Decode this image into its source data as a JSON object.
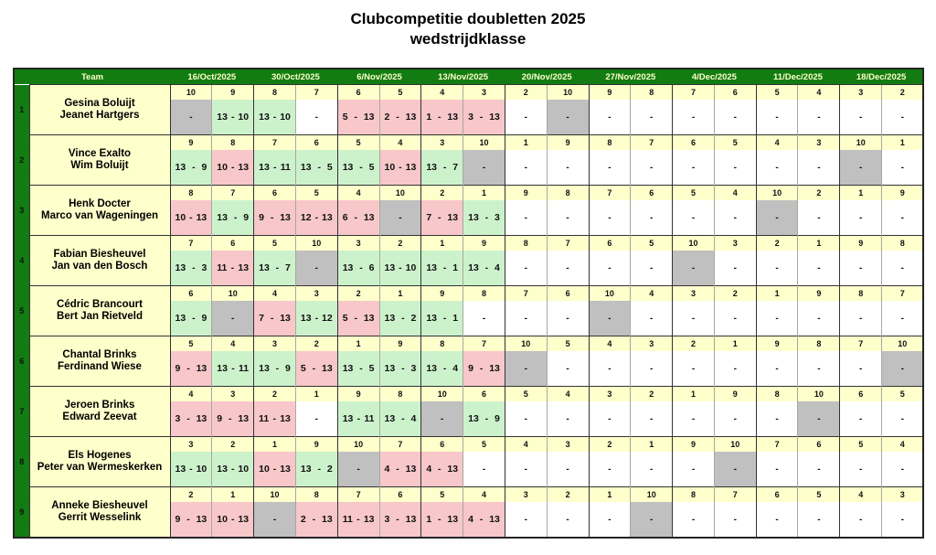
{
  "title": {
    "line1": "Clubcompetitie doubletten 2025",
    "line2": "wedstrijdklasse"
  },
  "colors": {
    "header_green": "#127C12",
    "header_text": "#FFFFCC",
    "cell_yellow": "#FFFFCC",
    "win_green": "#CCF2CC",
    "loss_red": "#F7C7C9",
    "bye_gray": "#C0C0C0",
    "open_white": "#FFFFFF",
    "border_dark": "#333333",
    "border_light": "#A8A89C"
  },
  "table": {
    "team_header": "Team",
    "dates": [
      "16/Oct/2025",
      "30/Oct/2025",
      "6/Nov/2025",
      "13/Nov/2025",
      "20/Nov/2025",
      "27/Nov/2025",
      "4/Dec/2025",
      "11/Dec/2025",
      "18/Dec/2025"
    ],
    "teams": [
      {
        "number": "1",
        "players": [
          "Gesina Boluijt",
          "Jeanet Hartgers"
        ],
        "games": [
          {
            "opp": "10",
            "score": "-",
            "state": "bye"
          },
          {
            "opp": "9",
            "score": "13 - 10",
            "state": "win"
          },
          {
            "opp": "8",
            "score": "13 - 10",
            "state": "win"
          },
          {
            "opp": "7",
            "score": "-",
            "state": "open"
          },
          {
            "opp": "6",
            "score": "5 - 13",
            "state": "loss"
          },
          {
            "opp": "5",
            "score": "2 - 13",
            "state": "loss"
          },
          {
            "opp": "4",
            "score": "1 - 13",
            "state": "loss"
          },
          {
            "opp": "3",
            "score": "3 - 13",
            "state": "loss"
          },
          {
            "opp": "2",
            "score": "-",
            "state": "open"
          },
          {
            "opp": "10",
            "score": "-",
            "state": "bye"
          },
          {
            "opp": "9",
            "score": "-",
            "state": "open"
          },
          {
            "opp": "8",
            "score": "-",
            "state": "open"
          },
          {
            "opp": "7",
            "score": "-",
            "state": "open"
          },
          {
            "opp": "6",
            "score": "-",
            "state": "open"
          },
          {
            "opp": "5",
            "score": "-",
            "state": "open"
          },
          {
            "opp": "4",
            "score": "-",
            "state": "open"
          },
          {
            "opp": "3",
            "score": "-",
            "state": "open"
          },
          {
            "opp": "2",
            "score": "-",
            "state": "open"
          }
        ]
      },
      {
        "number": "2",
        "players": [
          "Vince Exalto",
          "Wim Boluijt"
        ],
        "games": [
          {
            "opp": "9",
            "score": "13 - 9",
            "state": "win"
          },
          {
            "opp": "8",
            "score": "10 - 13",
            "state": "loss"
          },
          {
            "opp": "7",
            "score": "13 - 11",
            "state": "win"
          },
          {
            "opp": "6",
            "score": "13 - 5",
            "state": "win"
          },
          {
            "opp": "5",
            "score": "13 - 5",
            "state": "win"
          },
          {
            "opp": "4",
            "score": "10 - 13",
            "state": "loss"
          },
          {
            "opp": "3",
            "score": "13 - 7",
            "state": "win"
          },
          {
            "opp": "10",
            "score": "-",
            "state": "bye"
          },
          {
            "opp": "1",
            "score": "-",
            "state": "open"
          },
          {
            "opp": "9",
            "score": "-",
            "state": "open"
          },
          {
            "opp": "8",
            "score": "-",
            "state": "open"
          },
          {
            "opp": "7",
            "score": "-",
            "state": "open"
          },
          {
            "opp": "6",
            "score": "-",
            "state": "open"
          },
          {
            "opp": "5",
            "score": "-",
            "state": "open"
          },
          {
            "opp": "4",
            "score": "-",
            "state": "open"
          },
          {
            "opp": "3",
            "score": "-",
            "state": "open"
          },
          {
            "opp": "10",
            "score": "-",
            "state": "bye"
          },
          {
            "opp": "1",
            "score": "-",
            "state": "open"
          }
        ]
      },
      {
        "number": "3",
        "players": [
          "Henk Docter",
          "Marco van Wageningen"
        ],
        "games": [
          {
            "opp": "8",
            "score": "10 - 13",
            "state": "loss"
          },
          {
            "opp": "7",
            "score": "13 - 9",
            "state": "win"
          },
          {
            "opp": "6",
            "score": "9 - 13",
            "state": "loss"
          },
          {
            "opp": "5",
            "score": "12 - 13",
            "state": "loss"
          },
          {
            "opp": "4",
            "score": "6 - 13",
            "state": "loss"
          },
          {
            "opp": "10",
            "score": "-",
            "state": "bye"
          },
          {
            "opp": "2",
            "score": "7 - 13",
            "state": "loss"
          },
          {
            "opp": "1",
            "score": "13 - 3",
            "state": "win"
          },
          {
            "opp": "9",
            "score": "-",
            "state": "open"
          },
          {
            "opp": "8",
            "score": "-",
            "state": "open"
          },
          {
            "opp": "7",
            "score": "-",
            "state": "open"
          },
          {
            "opp": "6",
            "score": "-",
            "state": "open"
          },
          {
            "opp": "5",
            "score": "-",
            "state": "open"
          },
          {
            "opp": "4",
            "score": "-",
            "state": "open"
          },
          {
            "opp": "10",
            "score": "-",
            "state": "bye"
          },
          {
            "opp": "2",
            "score": "-",
            "state": "open"
          },
          {
            "opp": "1",
            "score": "-",
            "state": "open"
          },
          {
            "opp": "9",
            "score": "-",
            "state": "open"
          }
        ]
      },
      {
        "number": "4",
        "players": [
          "Fabian Biesheuvel",
          "Jan van den Bosch"
        ],
        "games": [
          {
            "opp": "7",
            "score": "13 - 3",
            "state": "win"
          },
          {
            "opp": "6",
            "score": "11 - 13",
            "state": "loss"
          },
          {
            "opp": "5",
            "score": "13 - 7",
            "state": "win"
          },
          {
            "opp": "10",
            "score": "-",
            "state": "bye"
          },
          {
            "opp": "3",
            "score": "13 - 6",
            "state": "win"
          },
          {
            "opp": "2",
            "score": "13 - 10",
            "state": "win"
          },
          {
            "opp": "1",
            "score": "13 - 1",
            "state": "win"
          },
          {
            "opp": "9",
            "score": "13 - 4",
            "state": "win"
          },
          {
            "opp": "8",
            "score": "-",
            "state": "open"
          },
          {
            "opp": "7",
            "score": "-",
            "state": "open"
          },
          {
            "opp": "6",
            "score": "-",
            "state": "open"
          },
          {
            "opp": "5",
            "score": "-",
            "state": "open"
          },
          {
            "opp": "10",
            "score": "-",
            "state": "bye"
          },
          {
            "opp": "3",
            "score": "-",
            "state": "open"
          },
          {
            "opp": "2",
            "score": "-",
            "state": "open"
          },
          {
            "opp": "1",
            "score": "-",
            "state": "open"
          },
          {
            "opp": "9",
            "score": "-",
            "state": "open"
          },
          {
            "opp": "8",
            "score": "-",
            "state": "open"
          }
        ]
      },
      {
        "number": "5",
        "players": [
          "Cédric Brancourt",
          "Bert Jan Rietveld"
        ],
        "games": [
          {
            "opp": "6",
            "score": "13 - 9",
            "state": "win"
          },
          {
            "opp": "10",
            "score": "-",
            "state": "bye"
          },
          {
            "opp": "4",
            "score": "7 - 13",
            "state": "loss"
          },
          {
            "opp": "3",
            "score": "13 - 12",
            "state": "win"
          },
          {
            "opp": "2",
            "score": "5 - 13",
            "state": "loss"
          },
          {
            "opp": "1",
            "score": "13 - 2",
            "state": "win"
          },
          {
            "opp": "9",
            "score": "13 - 1",
            "state": "win"
          },
          {
            "opp": "8",
            "score": "-",
            "state": "open"
          },
          {
            "opp": "7",
            "score": "-",
            "state": "open"
          },
          {
            "opp": "6",
            "score": "-",
            "state": "open"
          },
          {
            "opp": "10",
            "score": "-",
            "state": "bye"
          },
          {
            "opp": "4",
            "score": "-",
            "state": "open"
          },
          {
            "opp": "3",
            "score": "-",
            "state": "open"
          },
          {
            "opp": "2",
            "score": "-",
            "state": "open"
          },
          {
            "opp": "1",
            "score": "-",
            "state": "open"
          },
          {
            "opp": "9",
            "score": "-",
            "state": "open"
          },
          {
            "opp": "8",
            "score": "-",
            "state": "open"
          },
          {
            "opp": "7",
            "score": "-",
            "state": "open"
          }
        ]
      },
      {
        "number": "6",
        "players": [
          "Chantal Brinks",
          "Ferdinand Wiese"
        ],
        "games": [
          {
            "opp": "5",
            "score": "9 - 13",
            "state": "loss"
          },
          {
            "opp": "4",
            "score": "13 - 11",
            "state": "win"
          },
          {
            "opp": "3",
            "score": "13 - 9",
            "state": "win"
          },
          {
            "opp": "2",
            "score": "5 - 13",
            "state": "loss"
          },
          {
            "opp": "1",
            "score": "13 - 5",
            "state": "win"
          },
          {
            "opp": "9",
            "score": "13 - 3",
            "state": "win"
          },
          {
            "opp": "8",
            "score": "13 - 4",
            "state": "win"
          },
          {
            "opp": "7",
            "score": "9 - 13",
            "state": "loss"
          },
          {
            "opp": "10",
            "score": "-",
            "state": "bye"
          },
          {
            "opp": "5",
            "score": "-",
            "state": "open"
          },
          {
            "opp": "4",
            "score": "-",
            "state": "open"
          },
          {
            "opp": "3",
            "score": "-",
            "state": "open"
          },
          {
            "opp": "2",
            "score": "-",
            "state": "open"
          },
          {
            "opp": "1",
            "score": "-",
            "state": "open"
          },
          {
            "opp": "9",
            "score": "-",
            "state": "open"
          },
          {
            "opp": "8",
            "score": "-",
            "state": "open"
          },
          {
            "opp": "7",
            "score": "-",
            "state": "open"
          },
          {
            "opp": "10",
            "score": "-",
            "state": "bye"
          }
        ]
      },
      {
        "number": "7",
        "players": [
          "Jeroen Brinks",
          "Edward Zeevat"
        ],
        "games": [
          {
            "opp": "4",
            "score": "3 - 13",
            "state": "loss"
          },
          {
            "opp": "3",
            "score": "9 - 13",
            "state": "loss"
          },
          {
            "opp": "2",
            "score": "11 - 13",
            "state": "loss"
          },
          {
            "opp": "1",
            "score": "-",
            "state": "open"
          },
          {
            "opp": "9",
            "score": "13 - 11",
            "state": "win"
          },
          {
            "opp": "8",
            "score": "13 - 4",
            "state": "win"
          },
          {
            "opp": "10",
            "score": "-",
            "state": "bye"
          },
          {
            "opp": "6",
            "score": "13 - 9",
            "state": "win"
          },
          {
            "opp": "5",
            "score": "-",
            "state": "open"
          },
          {
            "opp": "4",
            "score": "-",
            "state": "open"
          },
          {
            "opp": "3",
            "score": "-",
            "state": "open"
          },
          {
            "opp": "2",
            "score": "-",
            "state": "open"
          },
          {
            "opp": "1",
            "score": "-",
            "state": "open"
          },
          {
            "opp": "9",
            "score": "-",
            "state": "open"
          },
          {
            "opp": "8",
            "score": "-",
            "state": "open"
          },
          {
            "opp": "10",
            "score": "-",
            "state": "bye"
          },
          {
            "opp": "6",
            "score": "-",
            "state": "open"
          },
          {
            "opp": "5",
            "score": "-",
            "state": "open"
          }
        ]
      },
      {
        "number": "8",
        "players": [
          "Els Hogenes",
          "Peter van Wermeskerken"
        ],
        "games": [
          {
            "opp": "3",
            "score": "13 - 10",
            "state": "win"
          },
          {
            "opp": "2",
            "score": "13 - 10",
            "state": "win"
          },
          {
            "opp": "1",
            "score": "10 - 13",
            "state": "loss"
          },
          {
            "opp": "9",
            "score": "13 - 2",
            "state": "win"
          },
          {
            "opp": "10",
            "score": "-",
            "state": "bye"
          },
          {
            "opp": "7",
            "score": "4 - 13",
            "state": "loss"
          },
          {
            "opp": "6",
            "score": "4 - 13",
            "state": "loss"
          },
          {
            "opp": "5",
            "score": "-",
            "state": "open"
          },
          {
            "opp": "4",
            "score": "-",
            "state": "open"
          },
          {
            "opp": "3",
            "score": "-",
            "state": "open"
          },
          {
            "opp": "2",
            "score": "-",
            "state": "open"
          },
          {
            "opp": "1",
            "score": "-",
            "state": "open"
          },
          {
            "opp": "9",
            "score": "-",
            "state": "open"
          },
          {
            "opp": "10",
            "score": "-",
            "state": "bye"
          },
          {
            "opp": "7",
            "score": "-",
            "state": "open"
          },
          {
            "opp": "6",
            "score": "-",
            "state": "open"
          },
          {
            "opp": "5",
            "score": "-",
            "state": "open"
          },
          {
            "opp": "4",
            "score": "-",
            "state": "open"
          }
        ]
      },
      {
        "number": "9",
        "players": [
          "Anneke Biesheuvel",
          "Gerrit Wesselink"
        ],
        "games": [
          {
            "opp": "2",
            "score": "9 - 13",
            "state": "loss"
          },
          {
            "opp": "1",
            "score": "10 - 13",
            "state": "loss"
          },
          {
            "opp": "10",
            "score": "-",
            "state": "bye"
          },
          {
            "opp": "8",
            "score": "2 - 13",
            "state": "loss"
          },
          {
            "opp": "7",
            "score": "11 - 13",
            "state": "loss"
          },
          {
            "opp": "6",
            "score": "3 - 13",
            "state": "loss"
          },
          {
            "opp": "5",
            "score": "1 - 13",
            "state": "loss"
          },
          {
            "opp": "4",
            "score": "4 - 13",
            "state": "loss"
          },
          {
            "opp": "3",
            "score": "-",
            "state": "open"
          },
          {
            "opp": "2",
            "score": "-",
            "state": "open"
          },
          {
            "opp": "1",
            "score": "-",
            "state": "open"
          },
          {
            "opp": "10",
            "score": "-",
            "state": "bye"
          },
          {
            "opp": "8",
            "score": "-",
            "state": "open"
          },
          {
            "opp": "7",
            "score": "-",
            "state": "open"
          },
          {
            "opp": "6",
            "score": "-",
            "state": "open"
          },
          {
            "opp": "5",
            "score": "-",
            "state": "open"
          },
          {
            "opp": "4",
            "score": "-",
            "state": "open"
          },
          {
            "opp": "3",
            "score": "-",
            "state": "open"
          }
        ]
      }
    ]
  }
}
